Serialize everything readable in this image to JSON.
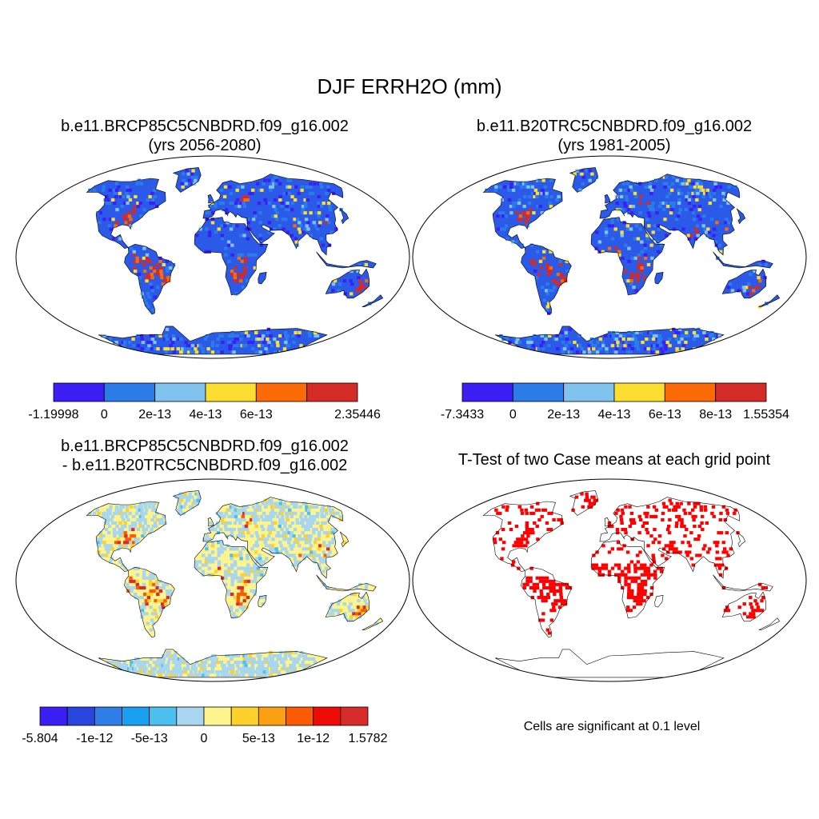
{
  "title": "DJF ERRH2O (mm)",
  "panels": [
    {
      "id": "case1",
      "title_line1": "b.e11.BRCP85C5CNBDRD.f09_g16.002",
      "title_line2": "(yrs 2056-2080)",
      "map_style": "field",
      "land_base": "#2b59e8",
      "palette": [
        "#3b1ff5",
        "#2b7ce8",
        "#7fc3ee",
        "#fbde2f",
        "#fb6a06",
        "#d42b28"
      ],
      "colorbar": {
        "colors": [
          "#3b1ff5",
          "#2b7ce8",
          "#7fc3ee",
          "#fbde2f",
          "#fb6a06",
          "#d42b28"
        ],
        "labels": [
          "-1.19998",
          "0",
          "2e-13",
          "4e-13",
          "6e-13",
          "",
          "2.35446"
        ]
      }
    },
    {
      "id": "case2",
      "title_line1": "b.e11.B20TRC5CNBDRD.f09_g16.002",
      "title_line2": "(yrs 1981-2005)",
      "map_style": "field",
      "land_base": "#2b59e8",
      "palette": [
        "#3b1ff5",
        "#2b7ce8",
        "#7fc3ee",
        "#fbde2f",
        "#fb6a06",
        "#d42b28"
      ],
      "colorbar": {
        "colors": [
          "#3b1ff5",
          "#2b7ce8",
          "#7fc3ee",
          "#fbde2f",
          "#fb6a06",
          "#d42b28"
        ],
        "labels": [
          "-7.3433",
          "0",
          "2e-13",
          "4e-13",
          "6e-13",
          "8e-13",
          "1.55354"
        ]
      }
    },
    {
      "id": "difference",
      "title_line1": "b.e11.BRCP85C5CNBDRD.f09_g16.002",
      "title_line2": "- b.e11.B20TRC5CNBDRD.f09_g16.002",
      "map_style": "difference",
      "land_base": "#fdf48e",
      "palette": [
        "#3b1ff5",
        "#2a44e0",
        "#2f7ee8",
        "#1aa0f0",
        "#4cc1f0",
        "#a8d6ee",
        "#fdf48e",
        "#fdd02c",
        "#fb9f13",
        "#fb5a06",
        "#ee0b05",
        "#d82b2b"
      ],
      "colorbar": {
        "colors": [
          "#3b1ff5",
          "#2a44e0",
          "#2f7ee8",
          "#1aa0f0",
          "#4cc1f0",
          "#a8d6ee",
          "#fdf48e",
          "#fdd02c",
          "#fb9f13",
          "#fb5a06",
          "#ee0b05",
          "#d82b2b"
        ],
        "labels": [
          "-5.804",
          "",
          "-1e-12",
          "",
          "-5e-13",
          "",
          "0",
          "",
          "5e-13",
          "",
          "1e-12",
          "",
          "1.5782"
        ]
      }
    },
    {
      "id": "ttest",
      "title_line1": "T-Test of two Case means at each grid point",
      "title_line2": "",
      "map_style": "significance",
      "land_base": "#ffffff",
      "palette": [
        "#ff0000"
      ],
      "note": "Cells are significant at 0.1 level"
    }
  ]
}
